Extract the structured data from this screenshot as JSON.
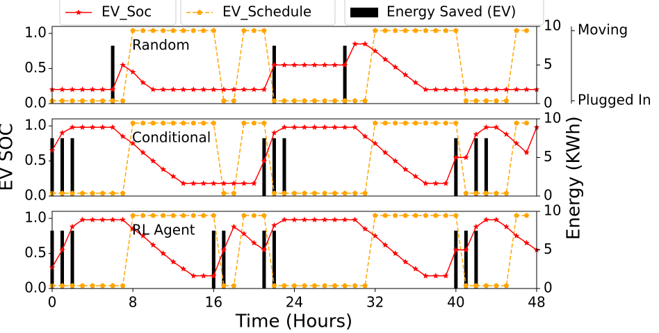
{
  "chart_data": {
    "type": "line",
    "xlabel": "Time (Hours)",
    "ylabel": "EV SOC",
    "y2label": "Energy (KWh)",
    "xlim": [
      0,
      48
    ],
    "xticks": [
      0,
      8,
      16,
      24,
      32,
      40,
      48
    ],
    "ylim": [
      0,
      1.1
    ],
    "yticks": [
      {
        "value": 0,
        "label": "0.0"
      },
      0.5,
      {
        "value": 1,
        "label": "1.0"
      }
    ],
    "y2lim": [
      0,
      10
    ],
    "y2ticks": [
      0,
      5,
      10
    ],
    "y3lim": [
      -0.04,
      1.06
    ],
    "y3ticks": [
      {
        "value": 1,
        "label": "Moving"
      },
      {
        "value": 0,
        "label": "Plugged In"
      }
    ],
    "series": [
      {
        "name": "EV_Soc",
        "color": "#ff0000"
      },
      {
        "name": "EV_Schedule",
        "color": "#ffa500"
      },
      {
        "name": "Energy Saved (EV)",
        "color": "#000000"
      }
    ],
    "x": [
      0,
      1,
      2,
      3,
      4,
      5,
      6,
      7,
      8,
      9,
      10,
      11,
      12,
      13,
      14,
      15,
      16,
      17,
      18,
      19,
      20,
      21,
      22,
      23,
      24,
      25,
      26,
      27,
      28,
      29,
      30,
      31,
      32,
      33,
      34,
      35,
      36,
      37,
      38,
      39,
      40,
      41,
      42,
      43,
      44,
      45,
      46,
      47,
      48
    ],
    "panels": [
      {
        "label": "Random",
        "soc": [
          0.2,
          0.2,
          0.2,
          0.2,
          0.2,
          0.2,
          0.2,
          0.55,
          0.45,
          0.3,
          0.2,
          0.2,
          0.2,
          0.2,
          0.2,
          0.2,
          0.2,
          0.2,
          0.2,
          0.2,
          0.2,
          0.2,
          0.55,
          0.55,
          0.55,
          0.55,
          0.55,
          0.55,
          0.55,
          0.55,
          0.85,
          0.85,
          0.75,
          0.63,
          0.52,
          0.41,
          0.3,
          0.2,
          0.2,
          0.2,
          0.2,
          0.2,
          0.2,
          0.2,
          0.2,
          0.2,
          0.2,
          0.2,
          0.2
        ],
        "schedule": [
          0,
          0,
          0,
          0,
          0,
          0,
          0,
          0,
          1,
          1,
          1,
          1,
          1,
          1,
          1,
          1,
          1,
          0,
          0,
          1,
          1,
          1,
          0,
          0,
          0,
          0,
          0,
          0,
          0,
          0,
          0,
          0,
          1,
          1,
          1,
          1,
          1,
          1,
          1,
          1,
          1,
          0,
          0,
          0,
          0,
          0,
          1,
          1,
          null
        ],
        "bar_x": [
          6,
          22,
          29
        ],
        "bar_values": [
          7.5,
          7.5,
          7.5
        ]
      },
      {
        "label": "Conditional",
        "soc": [
          0.65,
          0.9,
          0.98,
          0.98,
          0.98,
          0.98,
          0.98,
          0.85,
          0.75,
          0.62,
          0.5,
          0.38,
          0.28,
          0.18,
          0.18,
          0.18,
          0.18,
          0.18,
          0.18,
          0.18,
          0.18,
          0.5,
          0.9,
          0.98,
          0.98,
          0.98,
          0.98,
          0.98,
          0.98,
          0.98,
          0.98,
          0.85,
          0.75,
          0.62,
          0.5,
          0.38,
          0.28,
          0.18,
          0.18,
          0.18,
          0.55,
          0.55,
          0.88,
          0.98,
          0.98,
          0.88,
          0.75,
          0.62,
          0.98
        ],
        "schedule": [
          0,
          0,
          0,
          0,
          0,
          0,
          0,
          0,
          1,
          1,
          1,
          1,
          1,
          1,
          1,
          1,
          1,
          0,
          0,
          1,
          1,
          1,
          0,
          0,
          0,
          0,
          0,
          0,
          0,
          0,
          0,
          0,
          1,
          1,
          1,
          1,
          1,
          1,
          1,
          1,
          1,
          0,
          0,
          0,
          0,
          0,
          1,
          1,
          null
        ],
        "bar_x": [
          0,
          1,
          2,
          21,
          22,
          23,
          40,
          42,
          43
        ],
        "bar_values": [
          7.5,
          7.5,
          7.5,
          7.5,
          7.5,
          7.5,
          7.5,
          7.5,
          7.5
        ]
      },
      {
        "label": "RL Agent",
        "soc": [
          0.3,
          0.55,
          0.88,
          0.98,
          0.98,
          0.98,
          0.98,
          0.98,
          0.85,
          0.75,
          0.62,
          0.5,
          0.38,
          0.28,
          0.18,
          0.18,
          0.18,
          0.55,
          0.88,
          0.78,
          0.65,
          0.55,
          0.9,
          0.98,
          0.98,
          0.98,
          0.98,
          0.98,
          0.98,
          0.98,
          0.98,
          0.85,
          0.75,
          0.62,
          0.5,
          0.38,
          0.28,
          0.18,
          0.18,
          0.18,
          0.55,
          0.55,
          0.88,
          0.98,
          0.98,
          0.88,
          0.75,
          0.65,
          0.55
        ],
        "schedule": [
          0,
          0,
          0,
          0,
          0,
          0,
          0,
          0,
          1,
          1,
          1,
          1,
          1,
          1,
          1,
          1,
          1,
          0,
          0,
          1,
          1,
          1,
          0,
          0,
          0,
          0,
          0,
          0,
          0,
          0,
          0,
          0,
          1,
          1,
          1,
          1,
          1,
          1,
          1,
          1,
          1,
          0,
          0,
          0,
          0,
          0,
          1,
          1,
          null
        ],
        "bar_x": [
          0,
          1,
          2,
          16,
          17,
          21,
          22,
          40,
          41,
          42
        ],
        "bar_values": [
          7.5,
          7.5,
          7.5,
          7.5,
          7.5,
          7.5,
          7.5,
          7.5,
          7.5,
          7.5
        ]
      }
    ]
  }
}
